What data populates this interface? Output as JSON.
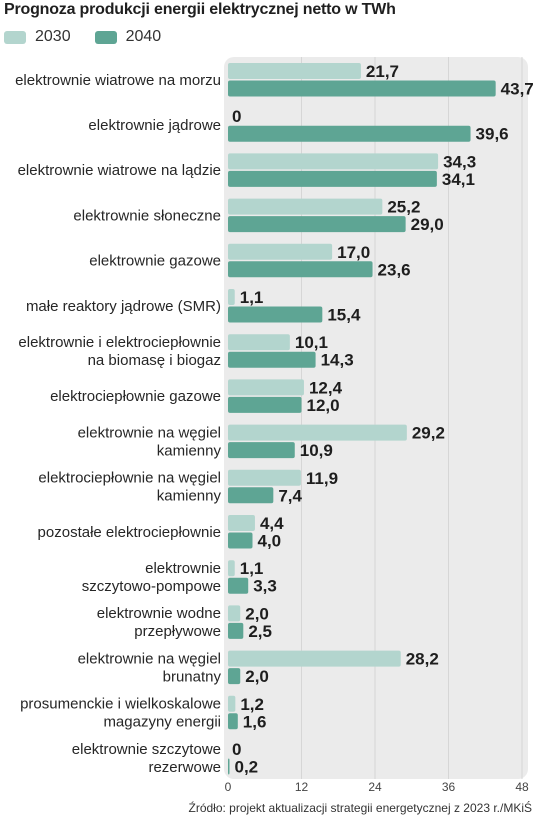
{
  "title": "Prognoza produkcji energii elektrycznej netto w TWh",
  "source": "Źródło: projekt aktualizacji strategii energetycznej z 2023 r./MKiŚ",
  "colors": {
    "series_2030": "#b3d5ce",
    "series_2040": "#5ea594",
    "panel": "#ebebeb",
    "grid": "#d6d6d6"
  },
  "chart_data": {
    "type": "bar",
    "orientation": "horizontal",
    "title": "Prognoza produkcji energii elektrycznej netto w TWh",
    "xlabel": "",
    "ylabel": "",
    "xlim": [
      0,
      48
    ],
    "ticks": [
      0,
      12,
      24,
      36,
      48
    ],
    "grid": true,
    "legend": "top-left",
    "categories": [
      [
        "elektrownie wiatrowe na morzu"
      ],
      [
        "elektrownie jądrowe"
      ],
      [
        "elektrownie wiatrowe na lądzie"
      ],
      [
        "elektrownie słoneczne"
      ],
      [
        "elektrownie gazowe"
      ],
      [
        "małe reaktory jądrowe (SMR)"
      ],
      [
        "elektrownie i elektrociepłownie",
        "na biomasę i biogaz"
      ],
      [
        "elektrociepłownie gazowe"
      ],
      [
        "elektrownie na węgiel",
        "kamienny"
      ],
      [
        "elektrociepłownie na węgiel",
        "kamienny"
      ],
      [
        "pozostałe elektrociepłownie"
      ],
      [
        "elektrownie",
        "szczytowo-pompowe"
      ],
      [
        "elektrownie wodne",
        "przepływowe"
      ],
      [
        "elektrownie na węgiel",
        "brunatny"
      ],
      [
        "prosumenckie i wielkoskalowe",
        "magazyny energii"
      ],
      [
        "elektrownie szczytowe",
        "rezerwowe"
      ]
    ],
    "series": [
      {
        "name": "2030",
        "values": [
          21.7,
          0,
          34.3,
          25.2,
          17.0,
          1.1,
          10.1,
          12.4,
          29.2,
          11.9,
          4.4,
          1.1,
          2.0,
          28.2,
          1.2,
          0
        ],
        "labels": [
          "21,7",
          "0",
          "34,3",
          "25,2",
          "17,0",
          "1,1",
          "10,1",
          "12,4",
          "29,2",
          "11,9",
          "4,4",
          "1,1",
          "2,0",
          "28,2",
          "1,2",
          "0"
        ]
      },
      {
        "name": "2040",
        "values": [
          43.7,
          39.6,
          34.1,
          29.0,
          23.6,
          15.4,
          14.3,
          12.0,
          10.9,
          7.4,
          4.0,
          3.3,
          2.5,
          2.0,
          1.6,
          0.2
        ],
        "labels": [
          "43,7",
          "39,6",
          "34,1",
          "29,0",
          "23,6",
          "15,4",
          "14,3",
          "12,0",
          "10,9",
          "7,4",
          "4,0",
          "3,3",
          "2,5",
          "2,0",
          "1,6",
          "0,2"
        ]
      }
    ]
  }
}
